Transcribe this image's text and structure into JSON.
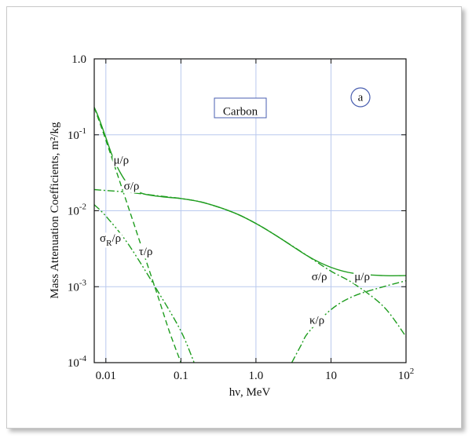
{
  "chart_data": {
    "type": "line",
    "xlabel": "hν, MeV",
    "ylabel": "Mass Attenuation Coefficients, m²/kg",
    "x_scale": "log",
    "y_scale": "log",
    "xlim": [
      0.007,
      100
    ],
    "ylim": [
      0.0001,
      1.0
    ],
    "grid": true,
    "x_ticks": [
      {
        "value": 0.01,
        "label": "0.01"
      },
      {
        "value": 0.1,
        "label": "0.1"
      },
      {
        "value": 1,
        "label": "1.0"
      },
      {
        "value": 10,
        "label": "10"
      },
      {
        "value": 100,
        "label": "10",
        "sup": "2"
      }
    ],
    "y_ticks": [
      {
        "value": 1,
        "label": "1.0",
        "sup": ""
      },
      {
        "value": 0.1,
        "label": "10",
        "sup": "-1"
      },
      {
        "value": 0.01,
        "label": "10",
        "sup": "-2"
      },
      {
        "value": 0.001,
        "label": "10",
        "sup": "-3"
      },
      {
        "value": 0.0001,
        "label": "10",
        "sup": "-4"
      }
    ],
    "annotations": {
      "material": "Carbon",
      "panel": "a"
    },
    "series": [
      {
        "name": "μ/ρ",
        "style": "solid",
        "color": "#1f9d1f",
        "x": [
          0.007,
          0.008,
          0.01,
          0.012,
          0.015,
          0.02,
          0.03,
          0.05,
          0.08,
          0.1,
          0.2,
          0.5,
          1,
          2,
          5,
          10,
          20,
          50,
          100
        ],
        "y": [
          0.23,
          0.17,
          0.092,
          0.055,
          0.034,
          0.022,
          0.017,
          0.0155,
          0.0148,
          0.0145,
          0.0128,
          0.0095,
          0.0068,
          0.0045,
          0.0025,
          0.0018,
          0.0015,
          0.0014,
          0.0014
        ]
      },
      {
        "name": "σ/ρ",
        "style": "dashdot",
        "color": "#1f9d1f",
        "x": [
          0.007,
          0.01,
          0.02,
          0.05,
          0.1,
          0.2,
          0.5,
          1,
          2,
          5,
          10,
          20,
          50,
          100
        ],
        "y": [
          0.019,
          0.0185,
          0.0175,
          0.0157,
          0.0145,
          0.0128,
          0.0095,
          0.0068,
          0.0045,
          0.0025,
          0.0016,
          0.0011,
          0.00055,
          0.00022
        ]
      },
      {
        "name": "τ/ρ",
        "style": "dashed",
        "color": "#1f9d1f",
        "x": [
          0.007,
          0.01,
          0.02,
          0.03,
          0.05,
          0.07,
          0.1
        ],
        "y": [
          0.23,
          0.085,
          0.011,
          0.0033,
          0.00072,
          0.00026,
          0.0001
        ]
      },
      {
        "name": "σ_R/ρ",
        "style": "dashdotdot",
        "color": "#1f9d1f",
        "x": [
          0.007,
          0.01,
          0.02,
          0.05,
          0.1,
          0.15
        ],
        "y": [
          0.012,
          0.0085,
          0.0036,
          0.00085,
          0.00026,
          0.0001
        ]
      },
      {
        "name": "κ/ρ",
        "style": "dashdot",
        "color": "#1f9d1f",
        "x": [
          3,
          4,
          5,
          10,
          20,
          50,
          100
        ],
        "y": [
          0.0001,
          0.00017,
          0.00025,
          0.0005,
          0.00075,
          0.001,
          0.0012
        ]
      }
    ],
    "curve_labels": [
      {
        "series": "μ/ρ",
        "text": "μ/ρ",
        "x": 0.016,
        "y": 0.045
      },
      {
        "series": "σ/ρ",
        "text": "σ/ρ",
        "x": 0.022,
        "y": 0.0205
      },
      {
        "series": "σ_R/ρ",
        "text": "σ",
        "sub": "R",
        "tail": "/ρ",
        "x": 0.0115,
        "y": 0.0042
      },
      {
        "series": "τ/ρ",
        "text": "τ/ρ",
        "x": 0.034,
        "y": 0.0028
      },
      {
        "series": "σ/ρ",
        "text": "σ/ρ",
        "x": 7.0,
        "y": 0.0013
      },
      {
        "series": "μ/ρ",
        "text": "μ/ρ",
        "x": 26,
        "y": 0.0013
      },
      {
        "series": "κ/ρ",
        "text": "κ/ρ",
        "x": 6.5,
        "y": 0.00035
      }
    ]
  }
}
